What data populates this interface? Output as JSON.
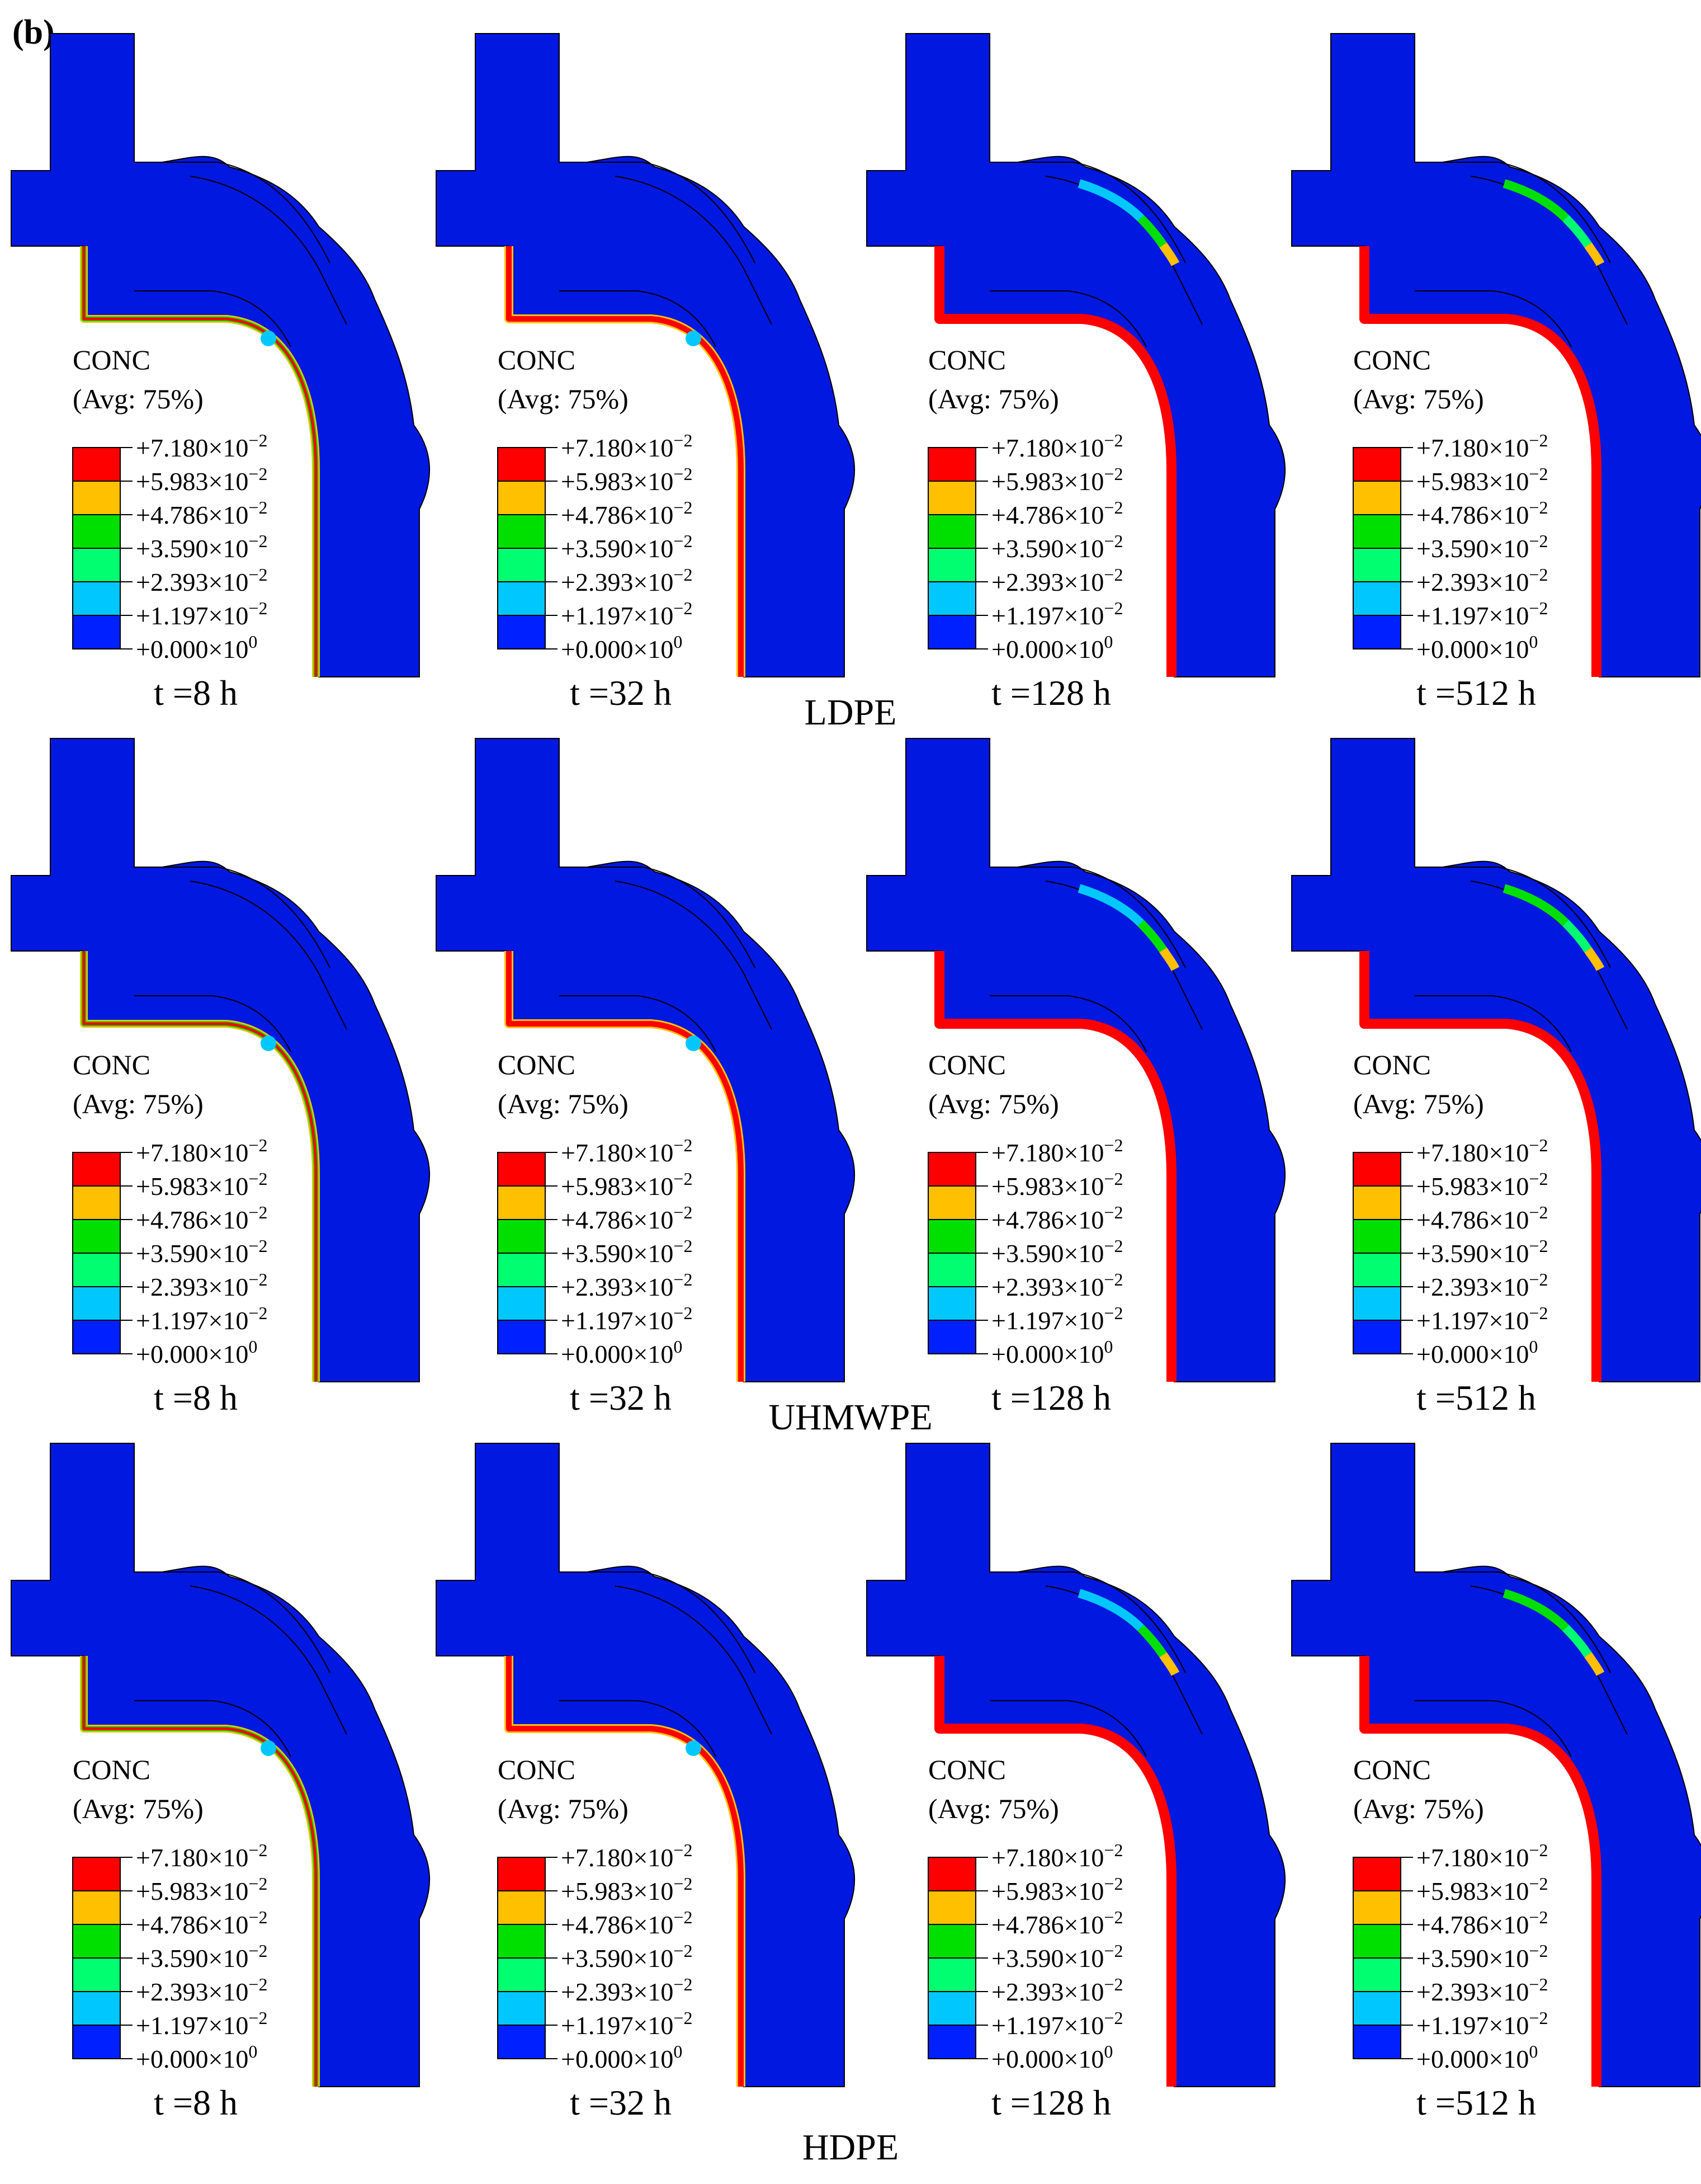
{
  "figure": {
    "label": "(b)"
  },
  "legend": {
    "variable": "CONC",
    "averaging": "(Avg: 75%)",
    "levels": [
      {
        "mantissa": "+7.180",
        "exponent": "-2",
        "color": "#ff0000"
      },
      {
        "mantissa": "+5.983",
        "exponent": "-2",
        "color": "#ffc000"
      },
      {
        "mantissa": "+4.786",
        "exponent": "-2",
        "color": "#00e000"
      },
      {
        "mantissa": "+3.590",
        "exponent": "-2",
        "color": "#00ff70"
      },
      {
        "mantissa": "+2.393",
        "exponent": "-2",
        "color": "#00c8ff"
      },
      {
        "mantissa": "+1.197",
        "exponent": "-2",
        "color": "#0020ff"
      },
      {
        "mantissa": "+0.000",
        "exponent": "0",
        "color": null
      }
    ]
  },
  "materials": [
    {
      "name": "LDPE",
      "panels": [
        {
          "time": "t =8 h",
          "stage": 0
        },
        {
          "time": "t =32 h",
          "stage": 1
        },
        {
          "time": "t  =128 h",
          "stage": 2
        },
        {
          "time": "t =512 h",
          "stage": 3
        }
      ]
    },
    {
      "name": "UHMWPE",
      "panels": [
        {
          "time": "t =8 h",
          "stage": 0
        },
        {
          "time": "t =32 h",
          "stage": 1
        },
        {
          "time": "t  =128 h",
          "stage": 2
        },
        {
          "time": "t =512 h",
          "stage": 3
        }
      ]
    },
    {
      "name": "HDPE",
      "panels": [
        {
          "time": "t =8 h",
          "stage": 0
        },
        {
          "time": "t =32 h",
          "stage": 1
        },
        {
          "time": "t  =128 h",
          "stage": 2
        },
        {
          "time": "t =512 h",
          "stage": 3
        }
      ]
    }
  ],
  "colors": {
    "body": "#0018e0",
    "outline": "#000000"
  }
}
